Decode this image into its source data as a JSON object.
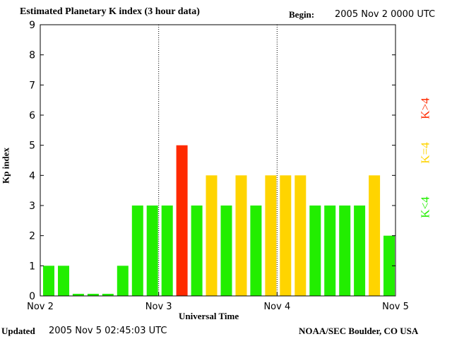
{
  "header": {
    "title": "Estimated Planetary K index (3 hour data)",
    "begin_label": "Begin:",
    "begin_value": "2005 Nov 2 0000 UTC"
  },
  "footer": {
    "updated_label": "Updated",
    "updated_value": "2005 Nov  5 02:45:03 UTC",
    "credit": "NOAA/SEC Boulder, CO USA"
  },
  "legend": [
    {
      "label": "K>4",
      "color": "#ff2a00"
    },
    {
      "label": "K=4",
      "color": "#ffd400"
    },
    {
      "label": "K<4",
      "color": "#22ee00"
    }
  ],
  "colors": {
    "k_below_4": "#22ee00",
    "k_equal_4": "#ffd400",
    "k_above_4": "#ff2a00",
    "axis": "#000000",
    "background": "#ffffff"
  },
  "chart_data": {
    "type": "bar",
    "title": "Estimated Planetary K index (3 hour data)",
    "xlabel": "Universal Time",
    "ylabel": "Kp index",
    "ylim": [
      0,
      9
    ],
    "yticks": [
      0,
      1,
      2,
      3,
      4,
      5,
      6,
      7,
      8,
      9
    ],
    "xlim": [
      "2005-11-02 00:00",
      "2005-11-05 00:00"
    ],
    "xtick_labels": [
      "Nov 2",
      "Nov 3",
      "Nov 4",
      "Nov 5"
    ],
    "day_separators": [
      "Nov 3",
      "Nov 4"
    ],
    "bar_interval_hours": 3,
    "categories": [
      "Nov 2 00-03",
      "Nov 2 03-06",
      "Nov 2 06-09",
      "Nov 2 09-12",
      "Nov 2 12-15",
      "Nov 2 15-18",
      "Nov 2 18-21",
      "Nov 2 21-24",
      "Nov 3 00-03",
      "Nov 3 03-06",
      "Nov 3 06-09",
      "Nov 3 09-12",
      "Nov 3 12-15",
      "Nov 3 15-18",
      "Nov 3 18-21",
      "Nov 3 21-24",
      "Nov 4 00-03",
      "Nov 4 03-06",
      "Nov 4 06-09",
      "Nov 4 09-12",
      "Nov 4 12-15",
      "Nov 4 15-18",
      "Nov 4 18-21",
      "Nov 4 21-24"
    ],
    "values": [
      1,
      1,
      0,
      0,
      0,
      1,
      3,
      3,
      3,
      5,
      3,
      4,
      3,
      4,
      3,
      4,
      4,
      4,
      3,
      3,
      3,
      3,
      4,
      2
    ],
    "grid": false
  }
}
